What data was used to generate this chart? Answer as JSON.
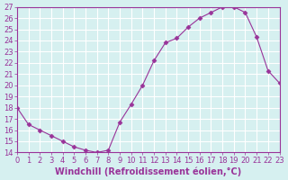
{
  "x": [
    0,
    1,
    2,
    3,
    4,
    5,
    6,
    7,
    8,
    9,
    10,
    11,
    12,
    13,
    14,
    15,
    16,
    17,
    18,
    19,
    20,
    21,
    22,
    23
  ],
  "y": [
    18,
    16.5,
    16,
    15.5,
    15,
    14.5,
    14.2,
    14,
    14.2,
    16.7,
    18.3,
    20,
    22.2,
    23.8,
    24.2,
    25.2,
    26,
    26.5,
    27,
    27,
    26.5,
    24.3,
    21.3,
    20.2
  ],
  "xlim": [
    0,
    23
  ],
  "ylim": [
    14,
    27
  ],
  "xticks": [
    0,
    1,
    2,
    3,
    4,
    5,
    6,
    7,
    8,
    9,
    10,
    11,
    12,
    13,
    14,
    15,
    16,
    17,
    18,
    19,
    20,
    21,
    22,
    23
  ],
  "yticks": [
    14,
    15,
    16,
    17,
    18,
    19,
    20,
    21,
    22,
    23,
    24,
    25,
    26,
    27
  ],
  "xlabel": "Windchill (Refroidissement éolien,°C)",
  "line_color": "#993399",
  "marker": "D",
  "marker_size": 2.5,
  "bg_color": "#d6f0f0",
  "grid_color": "#ffffff",
  "tick_label_fontsize": 6,
  "xlabel_fontsize": 7
}
